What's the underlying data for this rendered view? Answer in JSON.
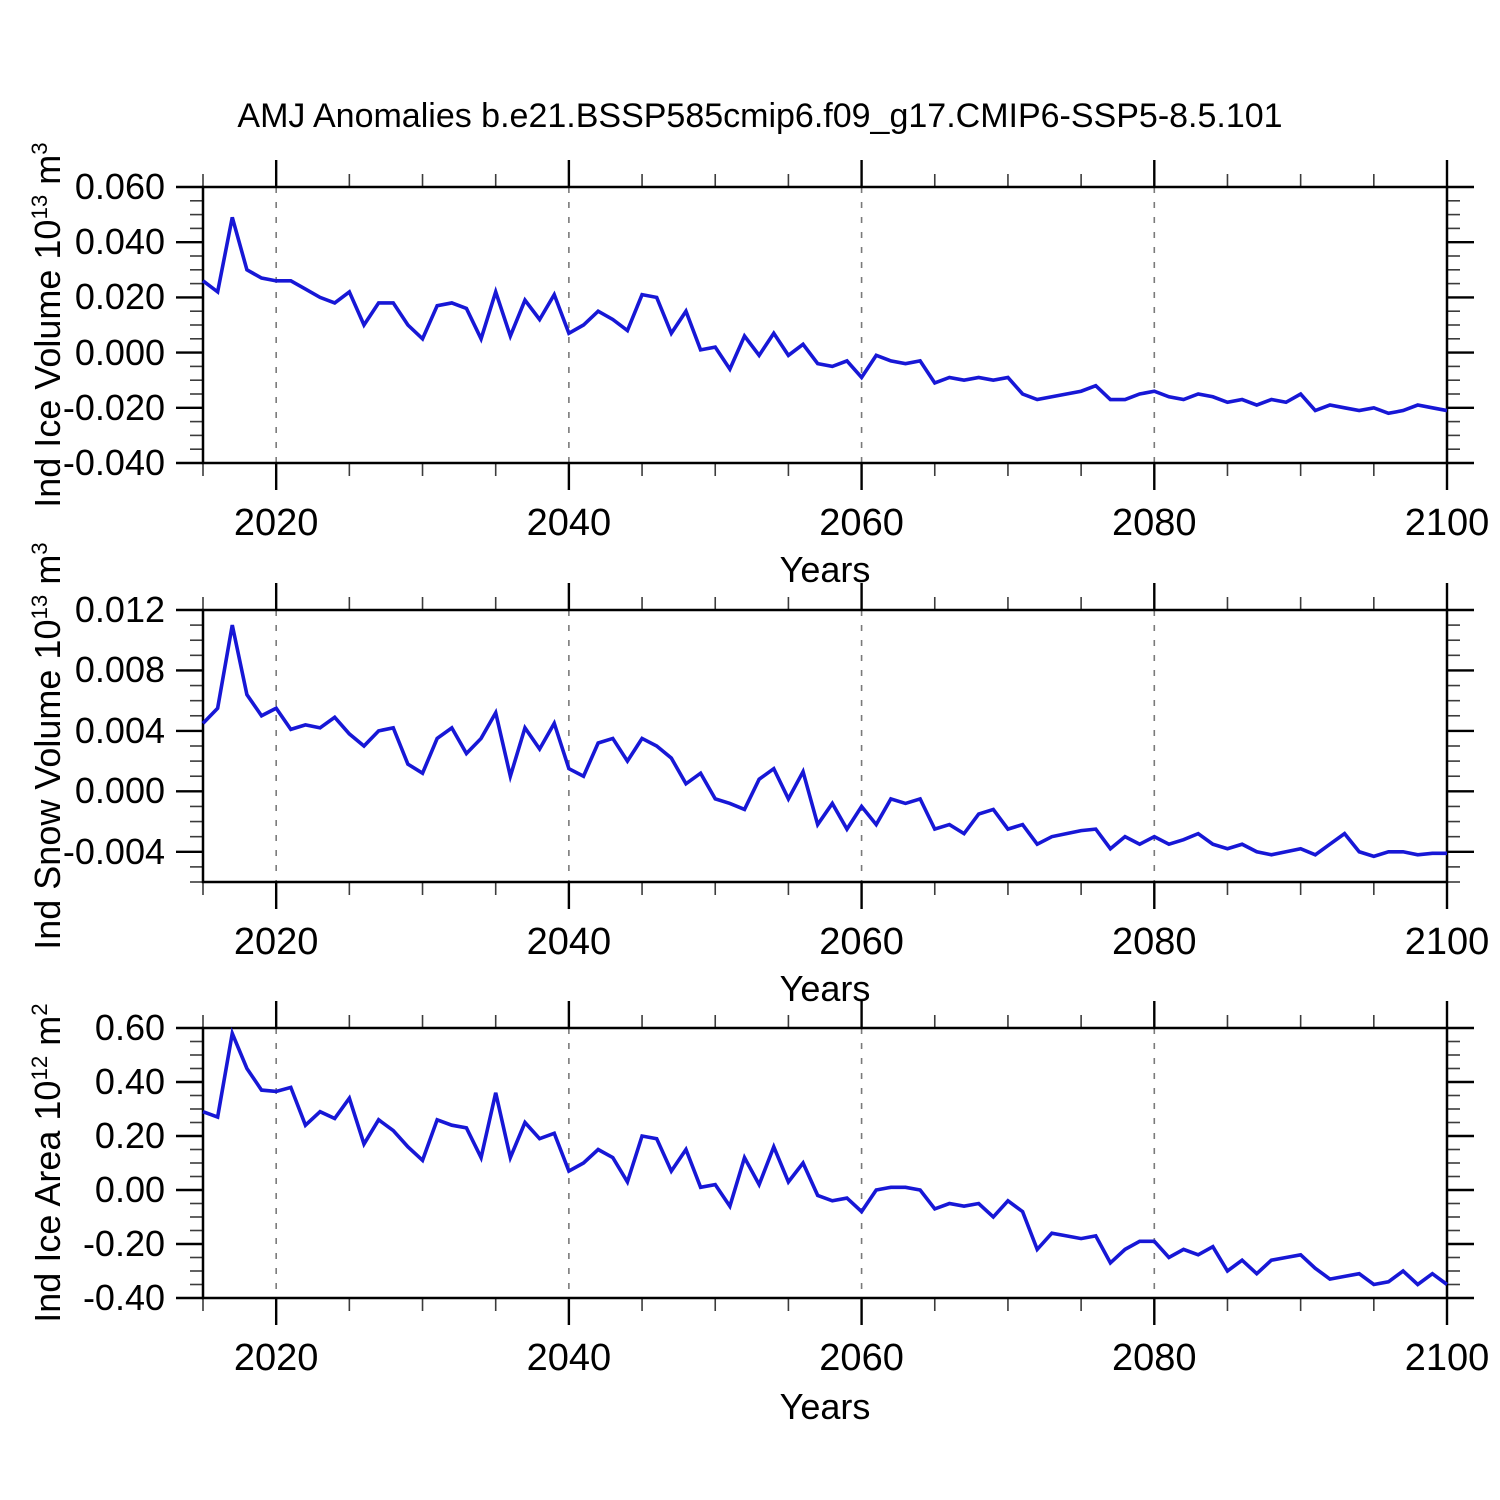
{
  "title": "AMJ Anomalies b.e21.BSSP585cmip6.f09_g17.CMIP6-SSP5-8.5.101",
  "colors": {
    "line": "#1717d6",
    "grid": "#7a7a7a",
    "axis": "#000000",
    "background": "#ffffff"
  },
  "x_axis": {
    "label": "Years",
    "range": [
      2015,
      2100
    ],
    "tick_values": [
      2020,
      2040,
      2060,
      2080,
      2100
    ],
    "tick_labels": [
      "2020",
      "2040",
      "2060",
      "2080",
      "2100"
    ],
    "minor_step": 5,
    "gridline_years": [
      2020,
      2040,
      2060,
      2080
    ],
    "grid_style": "dashed"
  },
  "chart_data": [
    {
      "type": "line",
      "name": "ind-ice-volume",
      "ylabel_parts": [
        "Ind Ice Volume 10",
        "13",
        " m",
        "3"
      ],
      "ylabel_plain": "Ind Ice Volume 10^13 m^3",
      "xlim": [
        2015,
        2100
      ],
      "ylim": [
        -0.04,
        0.06
      ],
      "ytick_values": [
        0.06,
        0.04,
        0.02,
        0.0,
        -0.02,
        -0.04
      ],
      "ytick_labels": [
        "0.060",
        "0.040",
        "0.020",
        "0.000",
        "-0.020",
        "-0.040"
      ],
      "y_minor_step": 0.005,
      "x_start": 2015,
      "x_step": 1,
      "values": [
        0.026,
        0.022,
        0.049,
        0.03,
        0.027,
        0.026,
        0.026,
        0.023,
        0.02,
        0.018,
        0.022,
        0.01,
        0.018,
        0.018,
        0.01,
        0.005,
        0.017,
        0.018,
        0.016,
        0.005,
        0.022,
        0.006,
        0.019,
        0.012,
        0.021,
        0.007,
        0.01,
        0.015,
        0.012,
        0.008,
        0.021,
        0.02,
        0.007,
        0.015,
        0.001,
        0.002,
        -0.006,
        0.006,
        -0.001,
        0.007,
        -0.001,
        0.003,
        -0.004,
        -0.005,
        -0.003,
        -0.009,
        -0.001,
        -0.003,
        -0.004,
        -0.003,
        -0.011,
        -0.009,
        -0.01,
        -0.009,
        -0.01,
        -0.009,
        -0.015,
        -0.017,
        -0.016,
        -0.015,
        -0.014,
        -0.012,
        -0.017,
        -0.017,
        -0.015,
        -0.014,
        -0.016,
        -0.017,
        -0.015,
        -0.016,
        -0.018,
        -0.017,
        -0.019,
        -0.017,
        -0.018,
        -0.015,
        -0.021,
        -0.019,
        -0.02,
        -0.021,
        -0.02,
        -0.022,
        -0.021,
        -0.019,
        -0.02,
        -0.021
      ]
    },
    {
      "type": "line",
      "name": "ind-snow-volume",
      "ylabel_parts": [
        "Ind Snow Volume 10",
        "13",
        " m",
        "3"
      ],
      "ylabel_plain": "Ind Snow Volume 10^13 m^3",
      "xlim": [
        2015,
        2100
      ],
      "ylim": [
        -0.006,
        0.012
      ],
      "ytick_values": [
        0.012,
        0.008,
        0.004,
        0.0,
        -0.004
      ],
      "ytick_labels": [
        "0.012",
        "0.008",
        "0.004",
        "0.000",
        "-0.004"
      ],
      "y_minor_step": 0.001,
      "x_start": 2015,
      "x_step": 1,
      "values": [
        0.0045,
        0.0055,
        0.011,
        0.0064,
        0.005,
        0.0055,
        0.0041,
        0.0044,
        0.0042,
        0.0049,
        0.0038,
        0.003,
        0.004,
        0.0042,
        0.0018,
        0.0012,
        0.0035,
        0.0042,
        0.0025,
        0.0035,
        0.0052,
        0.001,
        0.0042,
        0.0028,
        0.0045,
        0.0015,
        0.001,
        0.0032,
        0.0035,
        0.002,
        0.0035,
        0.003,
        0.0022,
        0.0005,
        0.0012,
        -0.0005,
        -0.0008,
        -0.0012,
        0.0008,
        0.0015,
        -0.0005,
        0.0013,
        -0.0022,
        -0.0008,
        -0.0025,
        -0.001,
        -0.0022,
        -0.0005,
        -0.0008,
        -0.0005,
        -0.0025,
        -0.0022,
        -0.0028,
        -0.0015,
        -0.0012,
        -0.0025,
        -0.0022,
        -0.0035,
        -0.003,
        -0.0028,
        -0.0026,
        -0.0025,
        -0.0038,
        -0.003,
        -0.0035,
        -0.003,
        -0.0035,
        -0.0032,
        -0.0028,
        -0.0035,
        -0.0038,
        -0.0035,
        -0.004,
        -0.0042,
        -0.004,
        -0.0038,
        -0.0042,
        -0.0035,
        -0.0028,
        -0.004,
        -0.0043,
        -0.004,
        -0.004,
        -0.0042,
        -0.0041,
        -0.0041
      ]
    },
    {
      "type": "line",
      "name": "ind-ice-area",
      "ylabel_parts": [
        "Ind Ice Area 10",
        "12",
        " m",
        "2"
      ],
      "ylabel_plain": "Ind Ice Area 10^12 m^2",
      "xlim": [
        2015,
        2100
      ],
      "ylim": [
        -0.4,
        0.6
      ],
      "ytick_values": [
        0.6,
        0.4,
        0.2,
        0.0,
        -0.2,
        -0.4
      ],
      "ytick_labels": [
        "0.60",
        "0.40",
        "0.20",
        "0.00",
        "-0.20",
        "-0.40"
      ],
      "y_minor_step": 0.05,
      "x_start": 2015,
      "x_step": 1,
      "values": [
        0.29,
        0.27,
        0.58,
        0.45,
        0.37,
        0.365,
        0.38,
        0.24,
        0.29,
        0.265,
        0.34,
        0.17,
        0.26,
        0.22,
        0.16,
        0.11,
        0.26,
        0.24,
        0.23,
        0.12,
        0.36,
        0.12,
        0.25,
        0.19,
        0.21,
        0.07,
        0.1,
        0.15,
        0.12,
        0.03,
        0.2,
        0.19,
        0.07,
        0.15,
        0.01,
        0.02,
        -0.06,
        0.12,
        0.02,
        0.16,
        0.03,
        0.1,
        -0.02,
        -0.04,
        -0.03,
        -0.08,
        0.0,
        0.01,
        0.01,
        0.0,
        -0.07,
        -0.05,
        -0.06,
        -0.05,
        -0.1,
        -0.04,
        -0.08,
        -0.22,
        -0.16,
        -0.17,
        -0.18,
        -0.17,
        -0.27,
        -0.22,
        -0.19,
        -0.19,
        -0.25,
        -0.22,
        -0.24,
        -0.21,
        -0.3,
        -0.26,
        -0.31,
        -0.26,
        -0.25,
        -0.24,
        -0.29,
        -0.33,
        -0.32,
        -0.31,
        -0.35,
        -0.34,
        -0.3,
        -0.35,
        -0.31,
        -0.35
      ]
    }
  ]
}
